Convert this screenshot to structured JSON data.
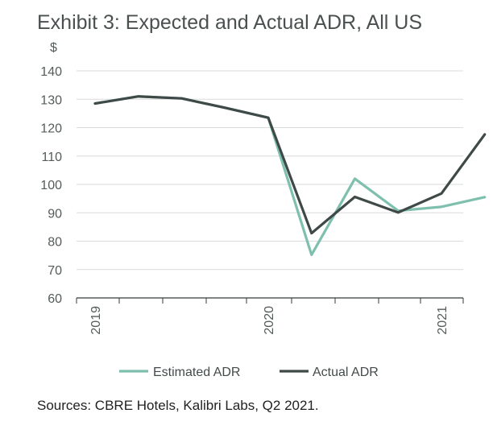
{
  "chart_data": {
    "type": "line",
    "title": "Exhibit 3: Expected and Actual ADR, All US",
    "ylabel": "$",
    "xlabel": "",
    "ylim": [
      60,
      140
    ],
    "yticks": [
      60,
      70,
      80,
      90,
      100,
      110,
      120,
      130,
      140
    ],
    "x_tick_labels": [
      "2019",
      "2020",
      "2021"
    ],
    "x_tick_positions": [
      0,
      4,
      8
    ],
    "quarters": [
      0,
      1,
      2,
      3,
      4,
      5,
      6,
      7,
      8,
      9
    ],
    "grid": true,
    "legend_position": "bottom",
    "series": [
      {
        "name": "Estimated ADR",
        "color": "#7fbfad",
        "values": [
          128.5,
          131,
          130.3,
          127,
          123.5,
          75.2,
          102,
          90.7,
          92.1,
          95.5
        ]
      },
      {
        "name": "Actual ADR",
        "color": "#3f4a48",
        "values": [
          128.5,
          131,
          130.3,
          127,
          123.5,
          82.8,
          95.6,
          90.1,
          96.8,
          117.6
        ]
      }
    ]
  },
  "source": "Sources: CBRE Hotels, Kalibri Labs, Q2 2021."
}
